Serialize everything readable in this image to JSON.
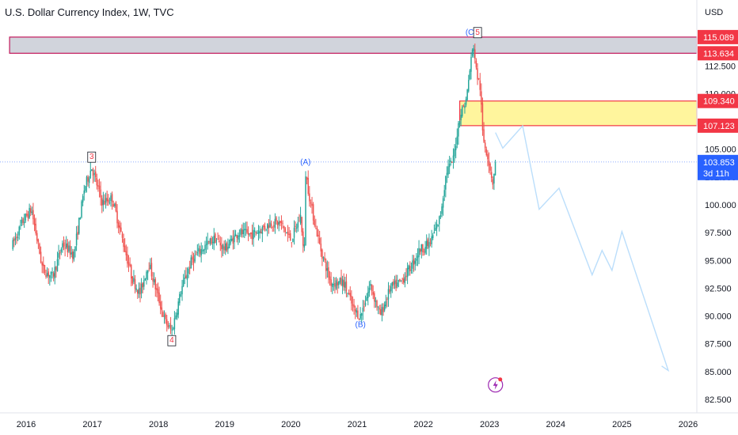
{
  "header": {
    "title": "U.S. Dollar Currency Index, 1W, TVC"
  },
  "chart_data": {
    "type": "candlestick",
    "title": "U.S. Dollar Currency Index, 1W, TVC",
    "currency_label": "USD",
    "x_ticks": [
      "2016",
      "2017",
      "2018",
      "2019",
      "2020",
      "2021",
      "2022",
      "2023",
      "2024",
      "2025",
      "2026"
    ],
    "y_ticks": [
      "82.500",
      "85.000",
      "87.500",
      "90.000",
      "92.500",
      "95.000",
      "97.500",
      "100.000",
      "102.500",
      "105.000",
      "107.500",
      "110.000",
      "112.500",
      "115.000"
    ],
    "ylim": [
      82.0,
      117.5
    ],
    "xlim": [
      2015.75,
      2026.25
    ],
    "colors": {
      "up": "#26a69a",
      "down": "#ef5350",
      "zone_upper": "#d1d4dc",
      "zone_upper_border": "#c2185b",
      "zone_lower": "#fff59d",
      "zone_lower_border": "#f23645",
      "current_price": "#2962ff",
      "projection": "#bbdefb"
    },
    "ohlc_anchors": [
      [
        2015.78,
        96.2
      ],
      [
        2015.95,
        98.5
      ],
      [
        2016.08,
        99.6
      ],
      [
        2016.25,
        94.2
      ],
      [
        2016.4,
        93.5
      ],
      [
        2016.55,
        96.5
      ],
      [
        2016.72,
        95.5
      ],
      [
        2016.88,
        101.5
      ],
      [
        2016.99,
        103.4
      ],
      [
        2017.15,
        100.2
      ],
      [
        2017.3,
        100.6
      ],
      [
        2017.45,
        97.0
      ],
      [
        2017.6,
        93.4
      ],
      [
        2017.72,
        92.0
      ],
      [
        2017.85,
        94.8
      ],
      [
        2017.98,
        92.0
      ],
      [
        2018.1,
        89.5
      ],
      [
        2018.2,
        88.6
      ],
      [
        2018.35,
        92.5
      ],
      [
        2018.5,
        95.0
      ],
      [
        2018.65,
        96.0
      ],
      [
        2018.85,
        97.0
      ],
      [
        2019.0,
        96.0
      ],
      [
        2019.2,
        97.5
      ],
      [
        2019.4,
        97.3
      ],
      [
        2019.55,
        97.8
      ],
      [
        2019.7,
        98.4
      ],
      [
        2019.85,
        98.3
      ],
      [
        2020.0,
        96.8
      ],
      [
        2020.15,
        99.0
      ],
      [
        2020.2,
        94.9
      ],
      [
        2020.22,
        102.9
      ],
      [
        2020.3,
        100.0
      ],
      [
        2020.45,
        96.0
      ],
      [
        2020.6,
        93.0
      ],
      [
        2020.8,
        93.0
      ],
      [
        2020.95,
        90.5
      ],
      [
        2021.05,
        90.0
      ],
      [
        2021.2,
        92.8
      ],
      [
        2021.35,
        90.0
      ],
      [
        2021.5,
        92.5
      ],
      [
        2021.65,
        93.0
      ],
      [
        2021.8,
        94.3
      ],
      [
        2021.95,
        96.0
      ],
      [
        2022.1,
        96.5
      ],
      [
        2022.25,
        98.8
      ],
      [
        2022.35,
        103.0
      ],
      [
        2022.45,
        104.0
      ],
      [
        2022.55,
        108.0
      ],
      [
        2022.65,
        109.5
      ],
      [
        2022.72,
        113.0
      ],
      [
        2022.76,
        114.4
      ],
      [
        2022.8,
        112.0
      ],
      [
        2022.86,
        110.5
      ],
      [
        2022.9,
        106.0
      ],
      [
        2022.97,
        104.5
      ],
      [
        2023.05,
        102.0
      ],
      [
        2023.09,
        103.853
      ]
    ],
    "horizontal_levels": [
      {
        "price": 115.089,
        "label": "115.089"
      },
      {
        "price": 113.634,
        "label": "113.634"
      },
      {
        "price": 109.34,
        "label": "109.340"
      },
      {
        "price": 107.123,
        "label": "107.123"
      }
    ],
    "current_price": {
      "price": 103.853,
      "label": "103.853",
      "countdown": "3d 11h"
    },
    "zones": [
      {
        "name": "upper-resistance-zone",
        "x_start": 2015.75,
        "x_end": 2026.25,
        "top": 115.089,
        "bottom": 113.634
      },
      {
        "name": "supply-zone",
        "x_start": 2022.55,
        "x_end": 2026.25,
        "top": 109.34,
        "bottom": 107.123
      }
    ],
    "wave_labels": [
      {
        "text": "3",
        "x": 2016.99,
        "y": 103.4,
        "boxed": true,
        "color": "#f23645",
        "pos": "above"
      },
      {
        "text": "4",
        "x": 2018.2,
        "y": 88.6,
        "boxed": true,
        "color": "#f23645",
        "pos": "below"
      },
      {
        "text": "(A)",
        "x": 2020.22,
        "y": 102.9,
        "boxed": false,
        "color": "#2962ff",
        "pos": "above"
      },
      {
        "text": "(B)",
        "x": 2021.05,
        "y": 90.0,
        "boxed": false,
        "color": "#2962ff",
        "pos": "below"
      },
      {
        "text": "(C)",
        "x": 2022.72,
        "y": 114.6,
        "boxed": false,
        "color": "#2962ff",
        "pos": "above"
      },
      {
        "text": "5",
        "x": 2022.82,
        "y": 114.6,
        "boxed": true,
        "color": "#f23645",
        "pos": "above"
      }
    ],
    "projection": [
      [
        2023.09,
        106.5
      ],
      [
        2023.2,
        105.1
      ],
      [
        2023.5,
        107.1
      ],
      [
        2023.75,
        99.6
      ],
      [
        2024.05,
        101.5
      ],
      [
        2024.55,
        93.7
      ],
      [
        2024.7,
        95.9
      ],
      [
        2024.85,
        94.1
      ],
      [
        2025.0,
        97.6
      ],
      [
        2025.7,
        85.1
      ],
      [
        2025.6,
        85.5
      ]
    ],
    "event_icon": {
      "x": 2023.09,
      "y": 83.8
    }
  }
}
